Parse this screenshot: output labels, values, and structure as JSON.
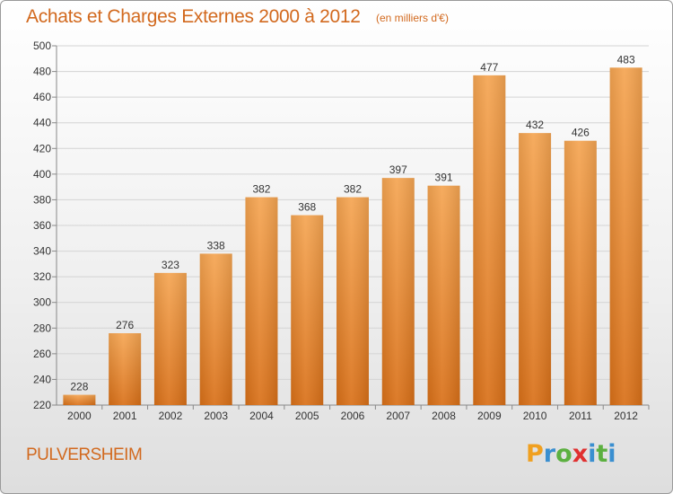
{
  "chart_data": {
    "type": "bar",
    "title": "Achats et Charges Externes 2000 à 2012",
    "subtitle": "(en milliers d'€)",
    "categories": [
      "2000",
      "2001",
      "2002",
      "2003",
      "2004",
      "2005",
      "2006",
      "2007",
      "2008",
      "2009",
      "2010",
      "2011",
      "2012"
    ],
    "values": [
      228,
      276,
      323,
      338,
      382,
      368,
      382,
      397,
      391,
      477,
      432,
      426,
      483
    ],
    "ylim": [
      220,
      500
    ],
    "yticks": [
      220,
      240,
      260,
      280,
      300,
      320,
      340,
      360,
      380,
      400,
      420,
      440,
      460,
      480,
      500
    ],
    "grid": true,
    "bar_color": "#e8822a"
  },
  "footer": {
    "city": "PULVERSHEIM",
    "logo": {
      "letters": [
        "P",
        "r",
        "o",
        "x",
        "i",
        "t",
        "i"
      ],
      "colors": [
        "#f0a020",
        "#3a8fd0",
        "#5cb040",
        "#e03030",
        "#3a8fd0",
        "#5cb040",
        "#3a8fd0"
      ]
    }
  }
}
